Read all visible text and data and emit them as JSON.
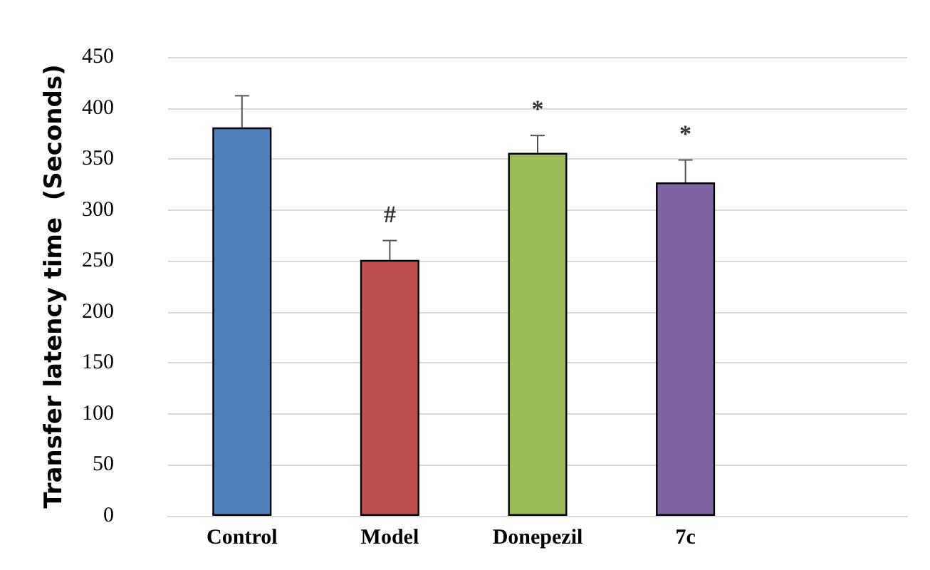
{
  "chart_data": {
    "type": "bar",
    "ylabel": "Transfer latency time  (Seconds)",
    "categories": [
      "Control",
      "Model",
      "Donepezil",
      "7c",
      null
    ],
    "values": [
      381,
      251,
      356,
      327,
      null
    ],
    "colors": [
      "#4f81bd",
      "#c0504d",
      "#9bbb59",
      "#8064a2",
      null
    ],
    "errors": [
      [
        381,
        412
      ],
      [
        251,
        270
      ],
      [
        356,
        373
      ],
      [
        327,
        349
      ],
      null
    ],
    "ylim": [
      0,
      450
    ],
    "yticks": [
      0,
      50,
      100,
      150,
      200,
      250,
      300,
      350,
      400,
      450
    ],
    "grid": "y",
    "annotations": [
      {
        "text": "#",
        "x": "Model",
        "y": 270
      },
      {
        "text": "*",
        "x": "Donepezil",
        "y": 373
      },
      {
        "text": "*",
        "x": "7c",
        "y": 349
      }
    ]
  }
}
